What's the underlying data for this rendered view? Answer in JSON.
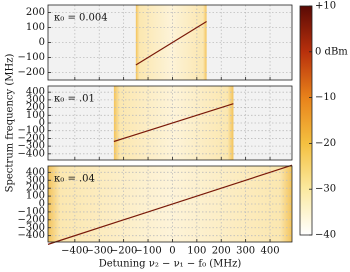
{
  "chart_data": {
    "type": "heatmap",
    "xlabel": "Detuning ν₂ − ν₁ − f₀ (MHz)",
    "ylabel": "Spectrum frequency (MHz)",
    "xlim": [
      -510,
      490
    ],
    "xticks": [
      {
        "value": -400,
        "label": "−400"
      },
      {
        "value": -300,
        "label": "−300"
      },
      {
        "value": -200,
        "label": "−200"
      },
      {
        "value": -100,
        "label": "−100"
      },
      0,
      100,
      200,
      300,
      400
    ],
    "zlim": [
      -40,
      10
    ],
    "zticks": [
      {
        "value": 10,
        "label": "+10"
      },
      {
        "value": 0,
        "label": "0 dBm"
      },
      {
        "value": -10,
        "label": "−10"
      },
      {
        "value": -20,
        "label": "−20"
      },
      {
        "value": -30,
        "label": "−30"
      },
      {
        "value": -40,
        "label": "−40"
      }
    ],
    "panels": [
      {
        "label": "κ₀ = 0.004",
        "ylim": [
          -250,
          250
        ],
        "yticks": [
          {
            "value": -200,
            "label": "−200"
          },
          {
            "value": -100,
            "label": "−100"
          },
          0,
          100,
          200
        ],
        "xspan": [
          -150,
          140
        ],
        "x": [
          -150,
          140
        ],
        "y": [
          -150,
          140
        ]
      },
      {
        "label": "κ₀ = .01",
        "ylim": [
          -480,
          480
        ],
        "yticks": [
          {
            "value": -400,
            "label": "−400"
          },
          {
            "value": -300,
            "label": "−300"
          },
          {
            "value": -200,
            "label": "−200"
          },
          {
            "value": -100,
            "label": "−100"
          },
          0,
          100,
          200,
          300,
          400
        ],
        "xspan": [
          -240,
          250
        ],
        "x": [
          -240,
          250
        ],
        "y": [
          -240,
          250
        ]
      },
      {
        "label": "κ₀ = .04",
        "ylim": [
          -480,
          480
        ],
        "yticks": [
          {
            "value": -400,
            "label": "−400"
          },
          {
            "value": -300,
            "label": "−300"
          },
          {
            "value": -200,
            "label": "−200"
          },
          {
            "value": -100,
            "label": "−100"
          },
          0,
          100,
          200,
          300,
          400
        ],
        "xspan": [
          -510,
          490
        ],
        "x": [
          -510,
          490
        ],
        "y": [
          -510,
          490
        ]
      }
    ]
  }
}
